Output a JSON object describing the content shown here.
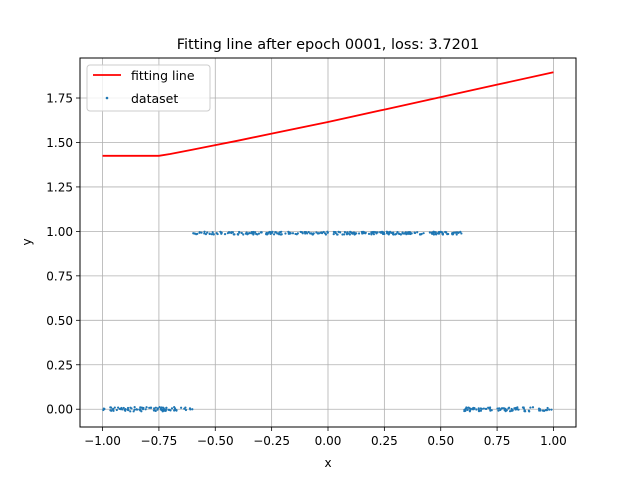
{
  "chart_data": {
    "type": "line+scatter",
    "title": "Fitting line after epoch 0001, loss: 3.7201",
    "xlabel": "x",
    "ylabel": "y",
    "xlim": [
      -1.1,
      1.1
    ],
    "ylim": [
      -0.1,
      1.975
    ],
    "xticks": [
      -1.0,
      -0.75,
      -0.5,
      -0.25,
      0.0,
      0.25,
      0.5,
      0.75,
      1.0
    ],
    "xtick_labels": [
      "−1.00",
      "−0.75",
      "−0.50",
      "−0.25",
      "0.00",
      "0.25",
      "0.50",
      "0.75",
      "1.00"
    ],
    "yticks": [
      0.0,
      0.25,
      0.5,
      0.75,
      1.0,
      1.25,
      1.5,
      1.75
    ],
    "ytick_labels": [
      "0.00",
      "0.25",
      "0.50",
      "0.75",
      "1.00",
      "1.25",
      "1.50",
      "1.75"
    ],
    "grid": true,
    "legend": {
      "position": "upper-left",
      "entries": [
        "fitting line",
        "dataset"
      ]
    },
    "series": [
      {
        "name": "fitting line",
        "kind": "line",
        "color": "#ff0000",
        "x": [
          -1.0,
          -0.9,
          -0.8,
          -0.75,
          -0.7,
          -0.6,
          -0.5,
          -0.4,
          -0.25,
          0.0,
          0.25,
          0.5,
          0.75,
          1.0
        ],
        "y": [
          1.425,
          1.425,
          1.425,
          1.425,
          1.435,
          1.46,
          1.485,
          1.51,
          1.55,
          1.615,
          1.685,
          1.755,
          1.825,
          1.895
        ]
      },
      {
        "name": "dataset",
        "kind": "scatter",
        "color": "#1f77b4",
        "segments": [
          {
            "x_range": [
              -1.0,
              -0.6
            ],
            "y": 0.0,
            "noise": 0.012
          },
          {
            "x_range": [
              -0.6,
              0.6
            ],
            "y": 0.99,
            "noise": 0.008
          },
          {
            "x_range": [
              0.6,
              1.0
            ],
            "y": 0.0,
            "noise": 0.012
          }
        ]
      }
    ]
  }
}
